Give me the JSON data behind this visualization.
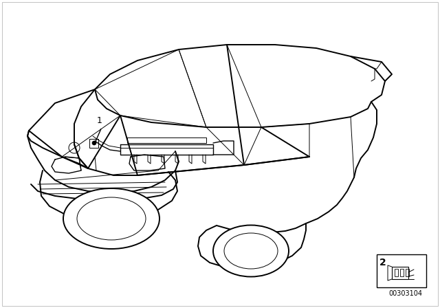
{
  "background_color": "#ffffff",
  "line_color": "#000000",
  "label_1": "1",
  "label_2": "2",
  "part_number": "00303104",
  "fig_width": 6.4,
  "fig_height": 4.48,
  "dpi": 100,
  "lw_main": 1.4,
  "lw_med": 1.0,
  "lw_thin": 0.7
}
